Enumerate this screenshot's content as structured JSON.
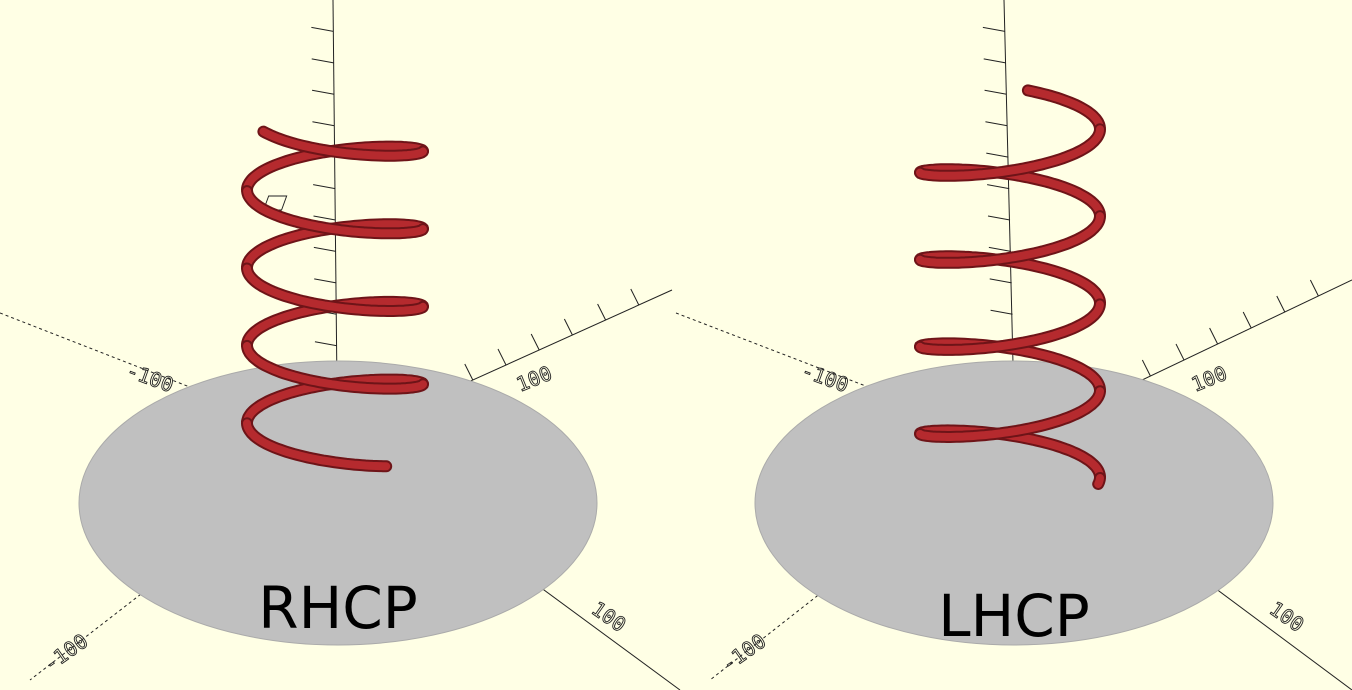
{
  "canvas": {
    "background": "#ffffe5"
  },
  "scenes": [
    {
      "label": "RHCP",
      "handedness": "right",
      "turns": 4.25
    },
    {
      "label": "LHCP",
      "handedness": "left",
      "turns": 4.25
    }
  ],
  "colors": {
    "helix": "#b52a2e",
    "helix_edge": "#6e1418",
    "disk": "#c0c0c0",
    "disk_edge": "#a9a9a9",
    "axes": "#222222"
  },
  "axis_numbers": {
    "left_neg_x": "-100",
    "left_pos_x": "100",
    "left_bottom": "-100",
    "left_right": "100",
    "right_neg_x": "-100",
    "right_pos_x": "100",
    "right_bottom": "-100",
    "right_right": "100"
  }
}
